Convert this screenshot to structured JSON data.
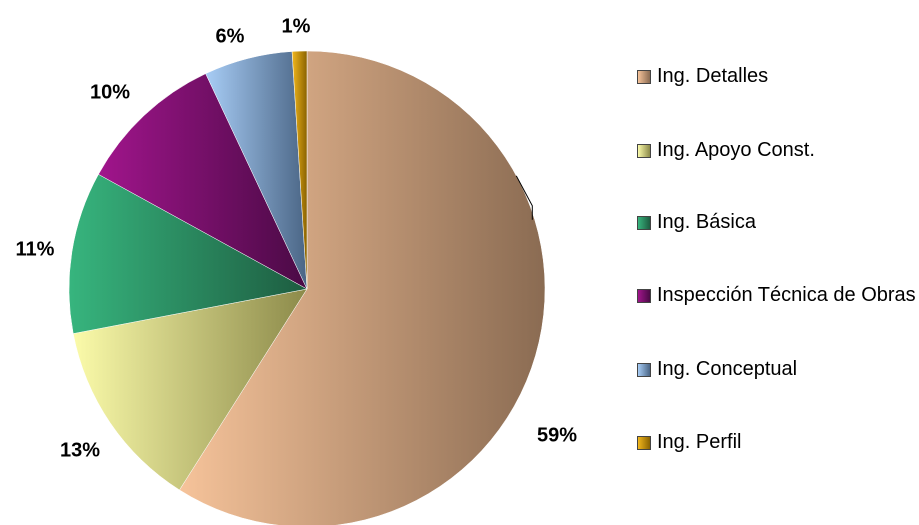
{
  "chart_data": {
    "type": "pie",
    "title": "",
    "legend_position": "right",
    "slices": [
      {
        "label": "Ing. Detalles",
        "value": 59,
        "display": "59%",
        "color_light": "#f6c39a",
        "color_dark": "#8a6b52"
      },
      {
        "label": "Ing. Apoyo Const.",
        "value": 13,
        "display": "13%",
        "color_light": "#fbfbaa",
        "color_dark": "#8c8a4a"
      },
      {
        "label": "Ing. Básica",
        "value": 11,
        "display": "11%",
        "color_light": "#37b57e",
        "color_dark": "#1d5c40"
      },
      {
        "label": "Inspección Técnica de Obras",
        "value": 10,
        "display": "10%",
        "color_light": "#a1158c",
        "color_dark": "#4a0a45"
      },
      {
        "label": "Ing. Conceptual",
        "value": 6,
        "display": "6%",
        "color_light": "#a8cdf6",
        "color_dark": "#4a6585"
      },
      {
        "label": "Ing. Perfil",
        "value": 1,
        "display": "1%",
        "color_light": "#f2b71c",
        "color_dark": "#8a6200"
      }
    ]
  }
}
